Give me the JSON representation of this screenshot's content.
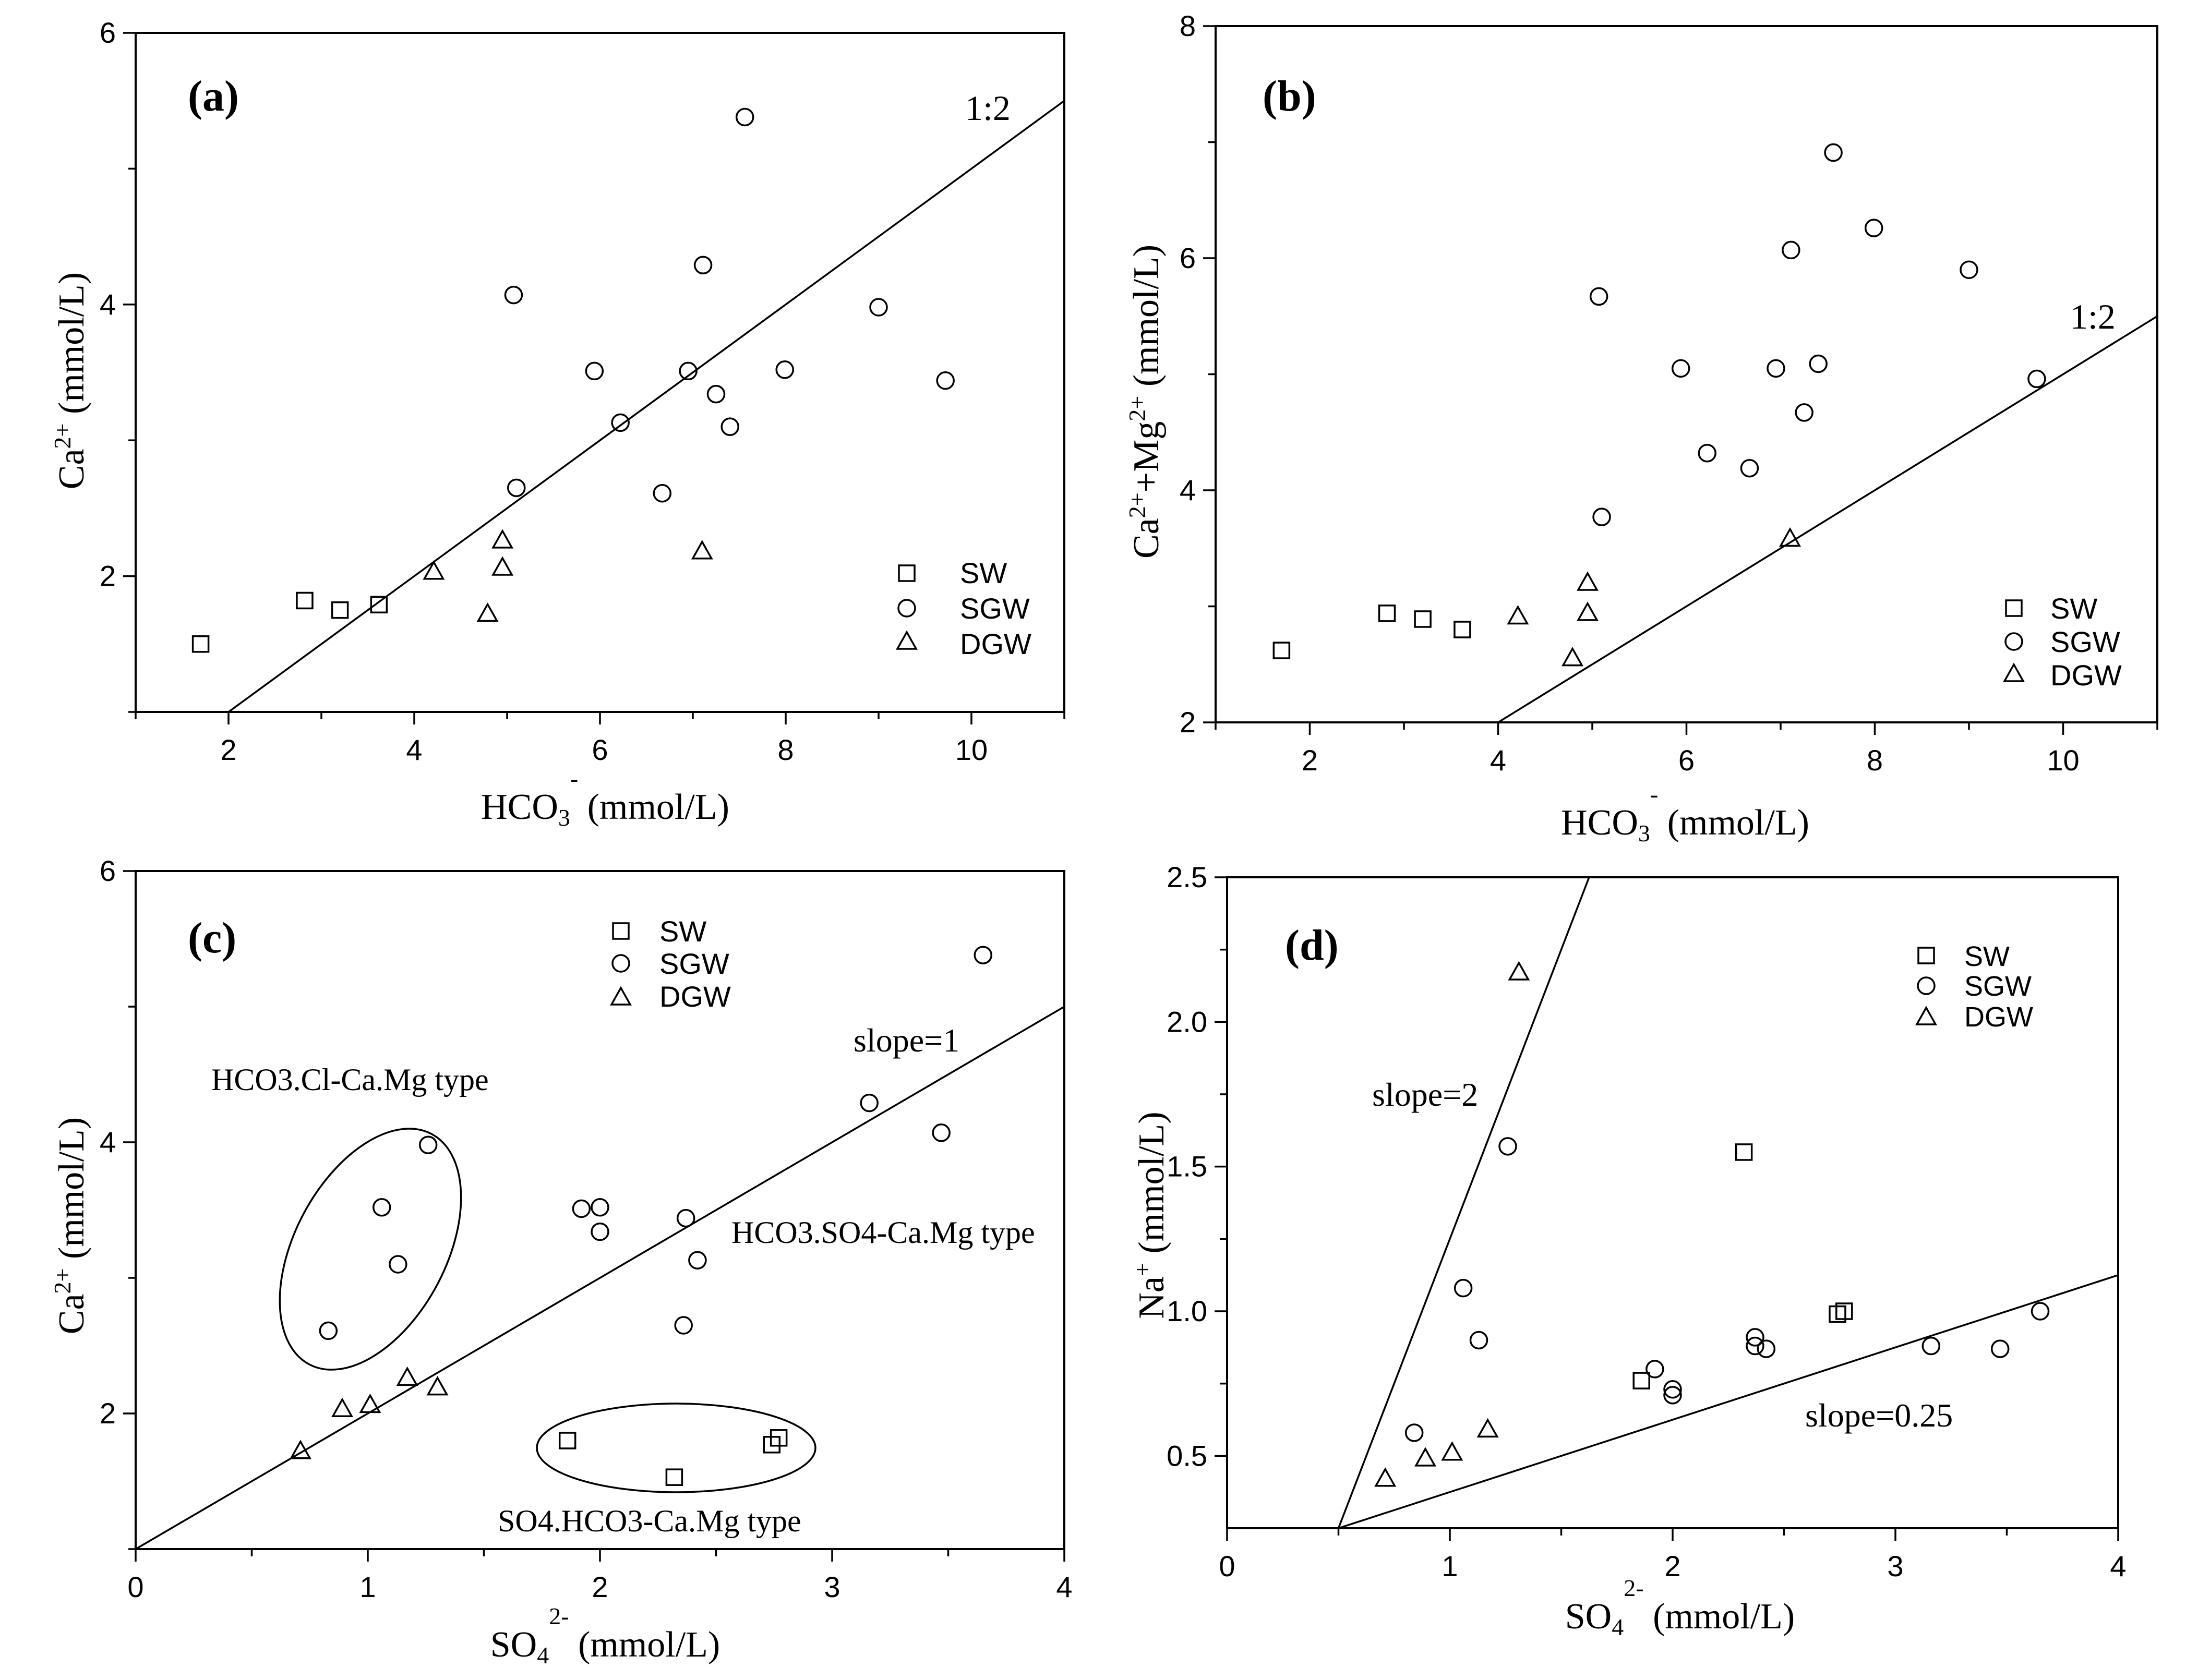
{
  "chart_data": [
    {
      "id": "a",
      "type": "scatter",
      "panel_label": "(a)",
      "xlabel": {
        "base": "HCO",
        "sub": "3",
        "sup": "-",
        "unit": " (mmol/L)"
      },
      "ylabel": {
        "base": "Ca",
        "sub": "",
        "sup": "2+",
        "unit": " (mmol/L)"
      },
      "xlim": [
        1,
        11
      ],
      "ylim": [
        1,
        6
      ],
      "xticks": [
        2,
        4,
        6,
        8,
        10
      ],
      "yticks": [
        2,
        4,
        6
      ],
      "xticks_minor": [
        1,
        3,
        5,
        7,
        9,
        11
      ],
      "yticks_minor": [
        1,
        3,
        5
      ],
      "grid": false,
      "legend_position": "bottom-right",
      "series": [
        {
          "name": "SW",
          "marker": "square",
          "points": [
            [
              1.7,
              1.5
            ],
            [
              2.82,
              1.82
            ],
            [
              3.2,
              1.75
            ],
            [
              3.62,
              1.79
            ]
          ]
        },
        {
          "name": "SGW",
          "marker": "circle",
          "points": [
            [
              7.56,
              5.38
            ],
            [
              5.07,
              4.07
            ],
            [
              7.11,
              4.29
            ],
            [
              9.0,
              3.98
            ],
            [
              5.94,
              3.51
            ],
            [
              6.95,
              3.51
            ],
            [
              7.99,
              3.52
            ],
            [
              9.72,
              3.44
            ],
            [
              7.25,
              3.34
            ],
            [
              6.22,
              3.13
            ],
            [
              7.4,
              3.1
            ],
            [
              5.1,
              2.65
            ],
            [
              6.67,
              2.61
            ]
          ]
        },
        {
          "name": "DGW",
          "marker": "triangle",
          "points": [
            [
              4.95,
              2.26
            ],
            [
              4.95,
              2.06
            ],
            [
              4.21,
              2.03
            ],
            [
              7.1,
              2.18
            ],
            [
              4.79,
              1.72
            ]
          ]
        }
      ],
      "reference_lines": [
        {
          "label": "1:2",
          "points": [
            [
              2,
              1
            ],
            [
              11,
              5.5
            ]
          ]
        }
      ]
    },
    {
      "id": "b",
      "type": "scatter",
      "panel_label": "(b)",
      "xlabel": {
        "base": "HCO",
        "sub": "3",
        "sup": "-",
        "unit": " (mmol/L)"
      },
      "ylabel": {
        "base": "Ca",
        "sub": "",
        "sup": "2+",
        "extra": "+Mg",
        "extra_sup": "2+",
        "unit": " (mmol/L)"
      },
      "xlim": [
        1,
        11
      ],
      "ylim": [
        2,
        8
      ],
      "xticks": [
        2,
        4,
        6,
        8,
        10
      ],
      "yticks": [
        2,
        4,
        6,
        8
      ],
      "xticks_minor": [
        1,
        3,
        5,
        7,
        9,
        11
      ],
      "yticks_minor": [
        3,
        5,
        7
      ],
      "grid": false,
      "legend_position": "bottom-right",
      "series": [
        {
          "name": "SW",
          "marker": "square",
          "points": [
            [
              1.7,
              2.62
            ],
            [
              2.82,
              2.94
            ],
            [
              3.2,
              2.89
            ],
            [
              3.62,
              2.8
            ]
          ]
        },
        {
          "name": "SGW",
          "marker": "circle",
          "points": [
            [
              7.56,
              6.91
            ],
            [
              7.99,
              6.26
            ],
            [
              7.11,
              6.07
            ],
            [
              9.0,
              5.9
            ],
            [
              5.07,
              5.67
            ],
            [
              5.94,
              5.05
            ],
            [
              6.95,
              5.05
            ],
            [
              7.4,
              5.09
            ],
            [
              9.72,
              4.96
            ],
            [
              7.25,
              4.67
            ],
            [
              6.22,
              4.32
            ],
            [
              6.67,
              4.19
            ],
            [
              5.1,
              3.77
            ]
          ]
        },
        {
          "name": "DGW",
          "marker": "triangle",
          "points": [
            [
              7.1,
              3.58
            ],
            [
              4.95,
              3.2
            ],
            [
              4.95,
              2.94
            ],
            [
              4.21,
              2.91
            ],
            [
              4.79,
              2.55
            ]
          ]
        }
      ],
      "reference_lines": [
        {
          "label": "1:2",
          "points": [
            [
              4,
              2
            ],
            [
              11,
              5.5
            ]
          ]
        }
      ]
    },
    {
      "id": "c",
      "type": "scatter",
      "panel_label": "(c)",
      "xlabel": {
        "base": "SO",
        "sub": "4",
        "sup": "2-",
        "unit": " (mmol/L)"
      },
      "ylabel": {
        "base": "Ca",
        "sub": "",
        "sup": "2+",
        "unit": " (mmol/L)"
      },
      "xlim": [
        0,
        4
      ],
      "ylim": [
        1,
        6
      ],
      "xticks": [
        0,
        1,
        2,
        3,
        4
      ],
      "yticks": [
        2,
        4,
        6
      ],
      "xticks_minor": [
        0.5,
        1.5,
        2.5,
        3.5
      ],
      "yticks_minor": [
        1,
        3,
        5
      ],
      "grid": false,
      "legend_position": "top-center",
      "series": [
        {
          "name": "SW",
          "marker": "square",
          "points": [
            [
              1.86,
              1.8
            ],
            [
              2.32,
              1.53
            ],
            [
              2.74,
              1.77
            ],
            [
              2.77,
              1.82
            ]
          ]
        },
        {
          "name": "SGW",
          "marker": "circle",
          "points": [
            [
              3.65,
              5.38
            ],
            [
              3.16,
              4.29
            ],
            [
              3.47,
              4.07
            ],
            [
              1.26,
              3.98
            ],
            [
              1.06,
              3.52
            ],
            [
              1.13,
              3.1
            ],
            [
              0.83,
              2.61
            ],
            [
              1.92,
              3.51
            ],
            [
              2.0,
              3.52
            ],
            [
              2.0,
              3.34
            ],
            [
              2.37,
              3.44
            ],
            [
              2.42,
              3.13
            ],
            [
              2.36,
              2.65
            ]
          ]
        },
        {
          "name": "DGW",
          "marker": "triangle",
          "points": [
            [
              0.71,
              1.72
            ],
            [
              0.89,
              2.03
            ],
            [
              1.01,
              2.06
            ],
            [
              1.17,
              2.26
            ],
            [
              1.3,
              2.19
            ]
          ]
        }
      ],
      "reference_lines": [
        {
          "label": "slope=1",
          "points": [
            [
              0,
              1
            ],
            [
              4,
              5
            ]
          ]
        }
      ],
      "annotations": [
        "HCO3.Cl-Ca.Mg type",
        "HCO3.SO4-Ca.Mg type",
        "SO4.HCO3-Ca.Mg type"
      ]
    },
    {
      "id": "d",
      "type": "scatter",
      "panel_label": "(d)",
      "xlabel": {
        "base": "SO",
        "sub": "4",
        "sup": "2-",
        "unit": " (mmol/L)"
      },
      "ylabel": {
        "base": "Na",
        "sub": "",
        "sup": "+",
        "unit": " (mmol/L)"
      },
      "xlim": [
        0,
        4
      ],
      "ylim": [
        0.25,
        2.5
      ],
      "xticks": [
        0,
        1,
        2,
        3,
        4
      ],
      "yticks": [
        0.5,
        1.0,
        1.5,
        2.0,
        2.5
      ],
      "ytick_labels": [
        "0.5",
        "1.0",
        "1.5",
        "2.0",
        "2.5"
      ],
      "xticks_minor": [
        0.5,
        1.5,
        2.5,
        3.5
      ],
      "yticks_minor": [
        0.75,
        1.25,
        1.75,
        2.25
      ],
      "grid": false,
      "legend_position": "top-right",
      "series": [
        {
          "name": "SW",
          "marker": "square",
          "points": [
            [
              2.32,
              1.55
            ],
            [
              2.74,
              0.99
            ],
            [
              2.77,
              1.0
            ],
            [
              1.86,
              0.76
            ]
          ]
        },
        {
          "name": "SGW",
          "marker": "circle",
          "points": [
            [
              1.26,
              1.57
            ],
            [
              1.06,
              1.08
            ],
            [
              1.13,
              0.9
            ],
            [
              0.84,
              0.58
            ],
            [
              1.92,
              0.8
            ],
            [
              2.0,
              0.73
            ],
            [
              2.0,
              0.71
            ],
            [
              2.37,
              0.91
            ],
            [
              2.37,
              0.88
            ],
            [
              2.42,
              0.87
            ],
            [
              3.16,
              0.88
            ],
            [
              3.47,
              0.87
            ],
            [
              3.65,
              1.0
            ]
          ]
        },
        {
          "name": "DGW",
          "marker": "triangle",
          "points": [
            [
              1.31,
              2.17
            ],
            [
              0.71,
              0.42
            ],
            [
              0.89,
              0.49
            ],
            [
              1.01,
              0.51
            ],
            [
              1.17,
              0.59
            ]
          ]
        }
      ],
      "reference_lines": [
        {
          "label": "slope=2",
          "points": [
            [
              0.5,
              0.25
            ],
            [
              1.625,
              2.5
            ]
          ]
        },
        {
          "label": "slope=0.25",
          "points": [
            [
              0.5,
              0.25
            ],
            [
              4,
              1.125
            ]
          ]
        }
      ]
    }
  ]
}
